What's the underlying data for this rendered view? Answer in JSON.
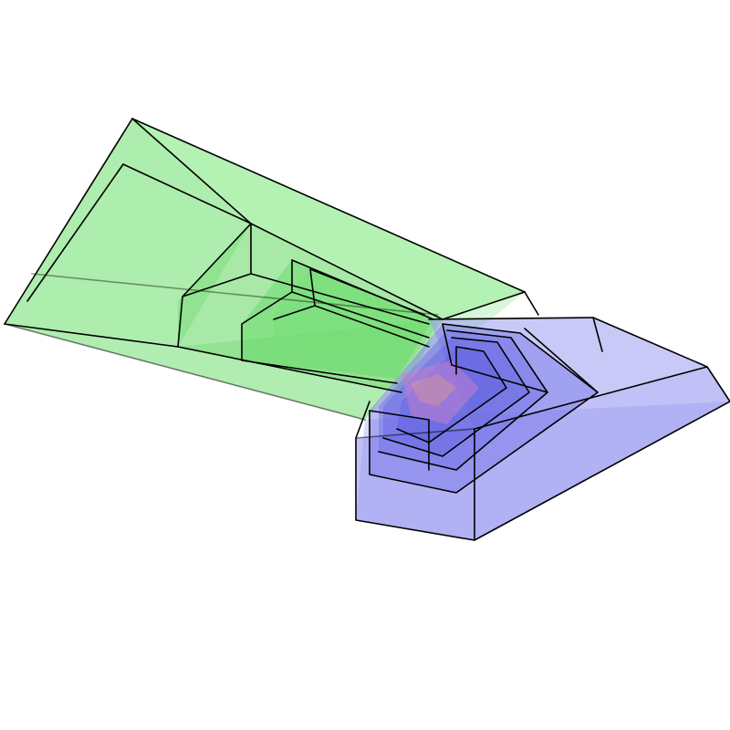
{
  "figure": {
    "colors": {
      "green_body": "#7be07b",
      "green_face": "#8ef08e",
      "blue_body": "#8a8af0",
      "blue_face": "#7070e8",
      "overlap_tint": "#c080d0",
      "edge": "#000000",
      "background": "#ffffff"
    },
    "solids": [
      {
        "id": "green-solid",
        "color": "green",
        "nested_layers": 3
      },
      {
        "id": "blue-solid",
        "color": "blue",
        "nested_layers": 4
      }
    ]
  }
}
